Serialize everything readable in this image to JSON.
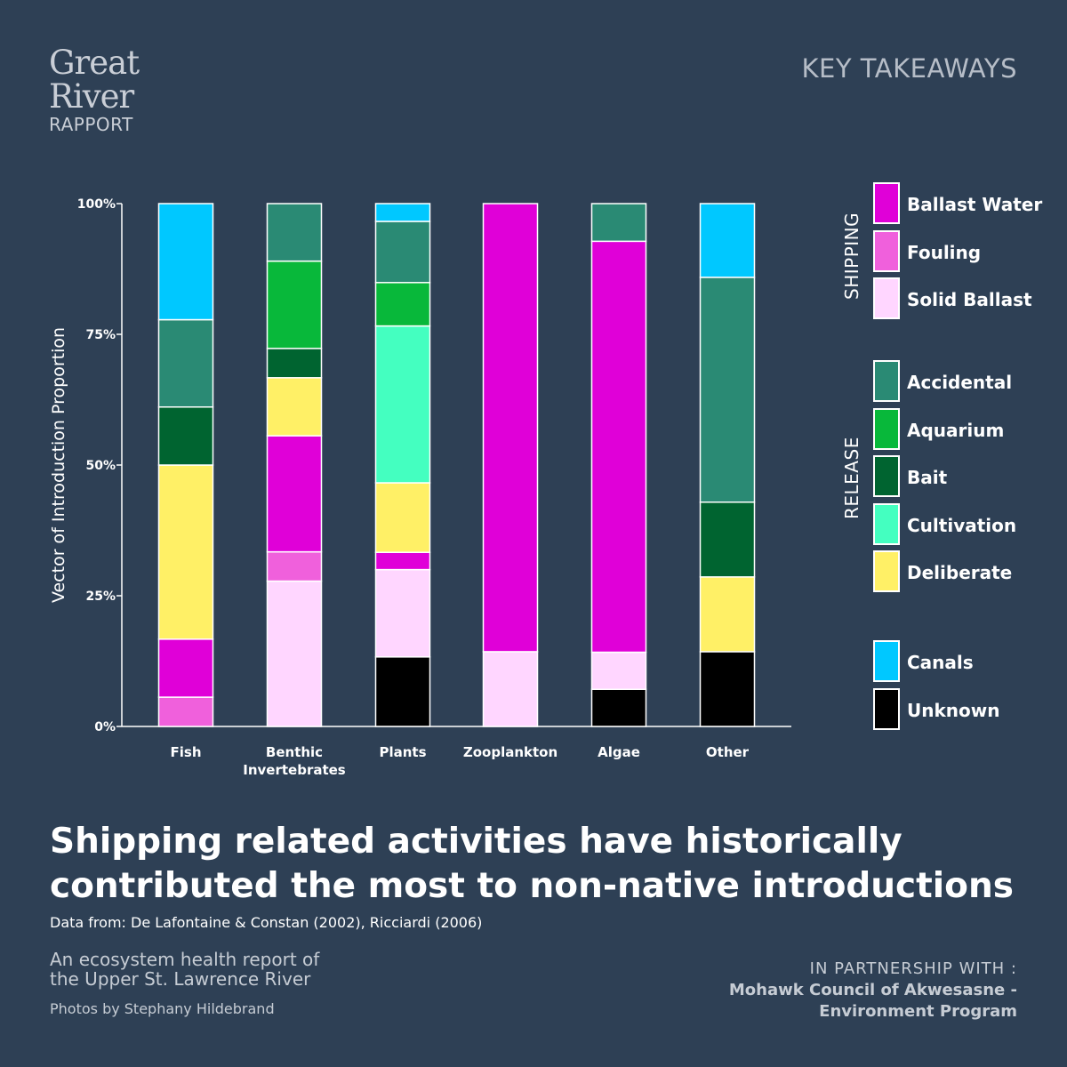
{
  "logo": {
    "line1": "Great",
    "line2": "River",
    "line3": "RAPPORT"
  },
  "header": {
    "key_takeaways": "KEY TAKEAWAYS"
  },
  "legend": {
    "groups": [
      {
        "label": "SHIPPING",
        "items": [
          {
            "label": "Ballast Water",
            "color": "#e000d8"
          },
          {
            "label": "Fouling",
            "color": "#f060dc"
          },
          {
            "label": "Solid Ballast",
            "color": "#ffd6ff"
          }
        ]
      },
      {
        "label": "RELEASE",
        "items": [
          {
            "label": "Accidental",
            "color": "#2a8a74"
          },
          {
            "label": "Aquarium",
            "color": "#08b83a"
          },
          {
            "label": "Bait",
            "color": "#006430"
          },
          {
            "label": "Cultivation",
            "color": "#44ffc0"
          },
          {
            "label": "Deliberate",
            "color": "#fff066"
          }
        ]
      },
      {
        "label": "",
        "items": [
          {
            "label": " Canals",
            "color": "#00c8ff"
          },
          {
            "label": "Unknown",
            "color": "#000000"
          }
        ]
      }
    ]
  },
  "chart_data": {
    "type": "bar",
    "stacked": true,
    "title": "",
    "xlabel": "",
    "ylabel": "Vector of Introduction Proportion",
    "ylim": [
      0,
      100
    ],
    "yticks": [
      0,
      25,
      50,
      75,
      100
    ],
    "ytick_labels": [
      "0%",
      "25%",
      "50%",
      "75%",
      "100%"
    ],
    "categories": [
      "Fish",
      "Benthic Invertebrates",
      "Plants",
      "Zooplankton",
      "Algae",
      "Other"
    ],
    "category_lines": [
      [
        "Fish"
      ],
      [
        "Benthic",
        "Invertebrates"
      ],
      [
        "Plants"
      ],
      [
        "Zooplankton"
      ],
      [
        "Algae"
      ],
      [
        "Other"
      ]
    ],
    "series": [
      {
        "name": "Unknown",
        "color": "#000000",
        "values": [
          0,
          0,
          13.3,
          0,
          7.1,
          14.3
        ]
      },
      {
        "name": "Solid Ballast",
        "color": "#ffd6ff",
        "values": [
          0,
          27.8,
          16.7,
          14.3,
          7.1,
          0
        ]
      },
      {
        "name": "Fouling",
        "color": "#f060dc",
        "values": [
          5.6,
          5.6,
          0,
          0,
          0,
          0
        ]
      },
      {
        "name": "Ballast Water",
        "color": "#e000d8",
        "values": [
          11.1,
          22.2,
          3.3,
          85.7,
          78.6,
          0
        ]
      },
      {
        "name": "Deliberate",
        "color": "#fff066",
        "values": [
          33.3,
          11.1,
          13.3,
          0,
          0,
          14.3
        ]
      },
      {
        "name": "Cultivation",
        "color": "#44ffc0",
        "values": [
          0,
          0,
          30.0,
          0,
          0,
          0
        ]
      },
      {
        "name": "Bait",
        "color": "#006430",
        "values": [
          11.1,
          5.6,
          0,
          0,
          0,
          14.3
        ]
      },
      {
        "name": "Aquarium",
        "color": "#08b83a",
        "values": [
          0,
          16.7,
          8.3,
          0,
          0,
          0
        ]
      },
      {
        "name": "Accidental",
        "color": "#2a8a74",
        "values": [
          16.7,
          11.0,
          11.7,
          0,
          7.2,
          43.0
        ]
      },
      {
        "name": "Canals",
        "color": "#00c8ff",
        "values": [
          22.2,
          0,
          3.4,
          0,
          0,
          14.1
        ]
      }
    ]
  },
  "headline": {
    "line1": "Shipping related activities have historically",
    "line2": "contributed the most to non-native introductions"
  },
  "source": "Data from: De Lafontaine & Constan (2002), Ricciardi (2006)",
  "footer": {
    "subtitle_line1": "An ecosystem health report of",
    "subtitle_line2": "the Upper St. Lawrence River",
    "photos": "Photos by Stephany Hildebrand",
    "partner_label": "IN PARTNERSHIP WITH :",
    "partner_org_line1": "Mohawk Council of Akwesasne -",
    "partner_org_line2": "Environment Program"
  }
}
